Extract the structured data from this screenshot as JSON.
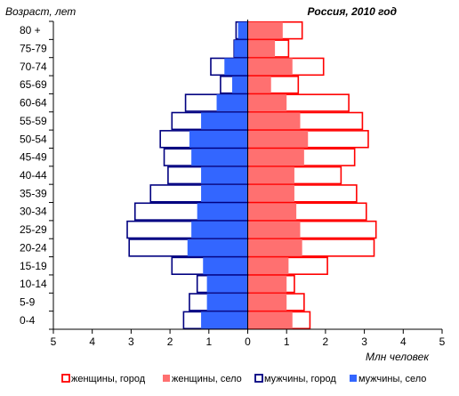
{
  "chart_data": {
    "type": "bar",
    "title": "Россия, 2010 год",
    "ylabel": "Возраст, лет",
    "xlabel": "Млн человек",
    "xlim": [
      -5,
      5
    ],
    "x_ticks": [
      -5,
      -4,
      -3,
      -2,
      -1,
      0,
      1,
      2,
      3,
      4,
      5
    ],
    "x_tick_labels": [
      "5",
      "4",
      "3",
      "2",
      "1",
      "0",
      "1",
      "2",
      "3",
      "4",
      "5"
    ],
    "categories": [
      "80 +",
      "75-79",
      "70-74",
      "65-69",
      "60-64",
      "55-59",
      "50-54",
      "45-49",
      "40-44",
      "35-39",
      "30-34",
      "25-29",
      "20-24",
      "15-19",
      "10-14",
      "5-9",
      "0-4"
    ],
    "series": [
      {
        "name": "женщины, город",
        "side": "right",
        "stack": "women",
        "style": "outline",
        "color": "#ff0000",
        "values": [
          1.4,
          1.05,
          1.95,
          1.3,
          2.6,
          2.95,
          3.1,
          2.75,
          2.4,
          2.8,
          3.05,
          3.3,
          3.25,
          2.05,
          1.2,
          1.45,
          1.6
        ]
      },
      {
        "name": "женщины, село",
        "side": "right",
        "stack": "women",
        "style": "fill",
        "color": "#ff7070",
        "values": [
          0.9,
          0.7,
          1.15,
          0.6,
          1.0,
          1.35,
          1.55,
          1.45,
          1.2,
          1.2,
          1.25,
          1.35,
          1.4,
          1.05,
          1.0,
          1.0,
          1.15
        ]
      },
      {
        "name": "мужчины, город",
        "side": "left",
        "stack": "men",
        "style": "outline",
        "color": "#000080",
        "values": [
          0.3,
          0.35,
          0.95,
          0.7,
          1.6,
          1.95,
          2.25,
          2.15,
          2.05,
          2.5,
          2.9,
          3.1,
          3.05,
          1.95,
          1.3,
          1.5,
          1.65
        ]
      },
      {
        "name": "мужчины, село",
        "side": "left",
        "stack": "men",
        "style": "fill",
        "color": "#3366ff",
        "values": [
          0.25,
          0.35,
          0.6,
          0.4,
          0.8,
          1.2,
          1.5,
          1.45,
          1.2,
          1.2,
          1.3,
          1.45,
          1.55,
          1.15,
          1.05,
          1.05,
          1.2
        ]
      }
    ],
    "legend_position": "bottom",
    "grid": false
  }
}
